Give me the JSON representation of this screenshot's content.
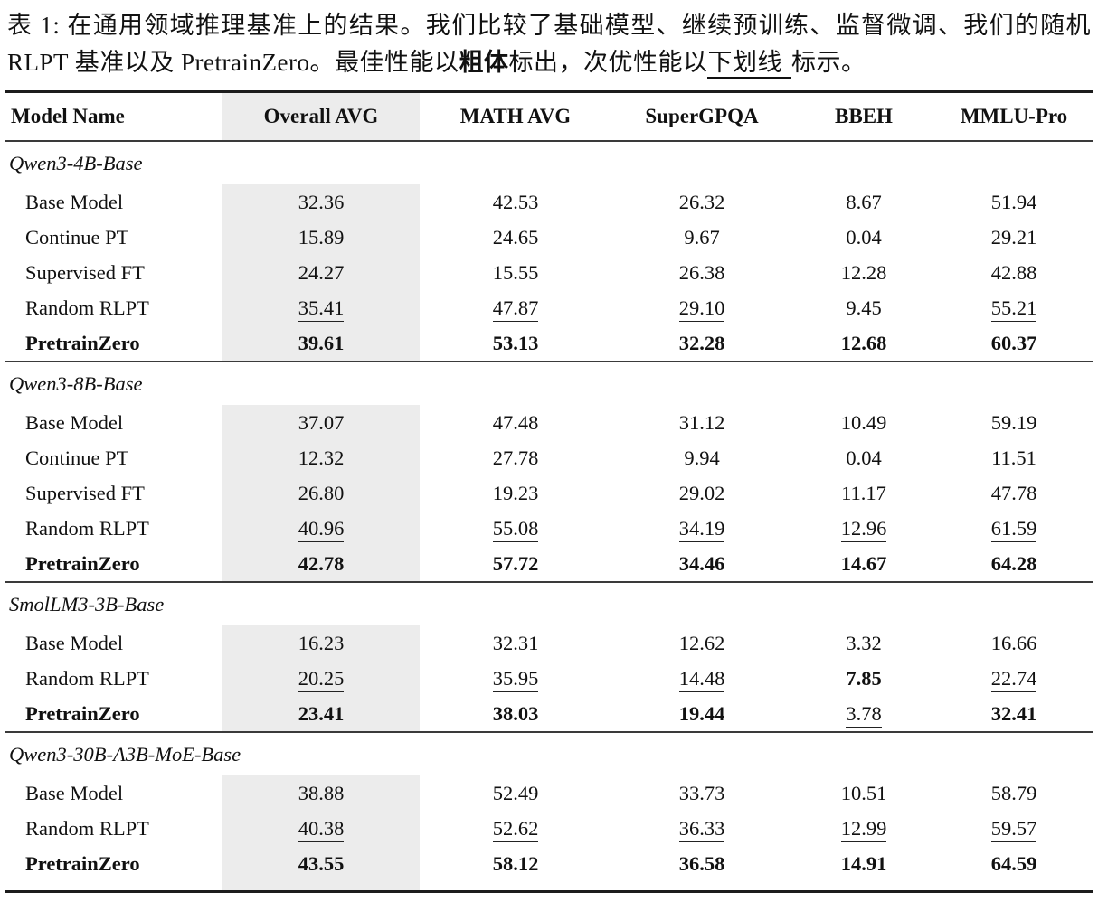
{
  "caption": {
    "label": "表 1: ",
    "text_before_bold": "在通用领域推理基准上的结果。我们比较了基础模型、继续预训练、监督微调、我们的随机 RLPT 基准以及 PretrainZero。最佳性能以",
    "bold_word": "粗体",
    "text_mid": "标出，次优性能以",
    "underline_word": "下划线",
    "text_after": "标示。"
  },
  "table": {
    "columns": [
      "Model Name",
      "Overall AVG",
      "MATH AVG",
      "SuperGPQA",
      "BBEH",
      "MMLU-Pro"
    ],
    "highlight_color": "#ececec",
    "sections": [
      {
        "name": "Qwen3-4B-Base",
        "rows": [
          {
            "label": "Base Model",
            "label_style": "p",
            "cells": [
              {
                "v": "32.36",
                "s": "p"
              },
              {
                "v": "42.53",
                "s": "p"
              },
              {
                "v": "26.32",
                "s": "p"
              },
              {
                "v": "8.67",
                "s": "p"
              },
              {
                "v": "51.94",
                "s": "p"
              }
            ]
          },
          {
            "label": "Continue PT",
            "label_style": "p",
            "cells": [
              {
                "v": "15.89",
                "s": "p"
              },
              {
                "v": "24.65",
                "s": "p"
              },
              {
                "v": "9.67",
                "s": "p"
              },
              {
                "v": "0.04",
                "s": "p"
              },
              {
                "v": "29.21",
                "s": "p"
              }
            ]
          },
          {
            "label": "Supervised FT",
            "label_style": "p",
            "cells": [
              {
                "v": "24.27",
                "s": "p"
              },
              {
                "v": "15.55",
                "s": "p"
              },
              {
                "v": "26.38",
                "s": "p"
              },
              {
                "v": "12.28",
                "s": "u"
              },
              {
                "v": "42.88",
                "s": "p"
              }
            ]
          },
          {
            "label": "Random RLPT",
            "label_style": "p",
            "cells": [
              {
                "v": "35.41",
                "s": "u"
              },
              {
                "v": "47.87",
                "s": "u"
              },
              {
                "v": "29.10",
                "s": "u"
              },
              {
                "v": "9.45",
                "s": "p"
              },
              {
                "v": "55.21",
                "s": "u"
              }
            ]
          },
          {
            "label": "PretrainZero",
            "label_style": "b",
            "cells": [
              {
                "v": "39.61",
                "s": "b"
              },
              {
                "v": "53.13",
                "s": "b"
              },
              {
                "v": "32.28",
                "s": "b"
              },
              {
                "v": "12.68",
                "s": "b"
              },
              {
                "v": "60.37",
                "s": "b"
              }
            ]
          }
        ]
      },
      {
        "name": "Qwen3-8B-Base",
        "rows": [
          {
            "label": "Base Model",
            "label_style": "p",
            "cells": [
              {
                "v": "37.07",
                "s": "p"
              },
              {
                "v": "47.48",
                "s": "p"
              },
              {
                "v": "31.12",
                "s": "p"
              },
              {
                "v": "10.49",
                "s": "p"
              },
              {
                "v": "59.19",
                "s": "p"
              }
            ]
          },
          {
            "label": "Continue PT",
            "label_style": "p",
            "cells": [
              {
                "v": "12.32",
                "s": "p"
              },
              {
                "v": "27.78",
                "s": "p"
              },
              {
                "v": "9.94",
                "s": "p"
              },
              {
                "v": "0.04",
                "s": "p"
              },
              {
                "v": "11.51",
                "s": "p"
              }
            ]
          },
          {
            "label": "Supervised FT",
            "label_style": "p",
            "cells": [
              {
                "v": "26.80",
                "s": "p"
              },
              {
                "v": "19.23",
                "s": "p"
              },
              {
                "v": "29.02",
                "s": "p"
              },
              {
                "v": "11.17",
                "s": "p"
              },
              {
                "v": "47.78",
                "s": "p"
              }
            ]
          },
          {
            "label": "Random RLPT",
            "label_style": "p",
            "cells": [
              {
                "v": "40.96",
                "s": "u"
              },
              {
                "v": "55.08",
                "s": "u"
              },
              {
                "v": "34.19",
                "s": "u"
              },
              {
                "v": "12.96",
                "s": "u"
              },
              {
                "v": "61.59",
                "s": "u"
              }
            ]
          },
          {
            "label": "PretrainZero",
            "label_style": "b",
            "cells": [
              {
                "v": "42.78",
                "s": "b"
              },
              {
                "v": "57.72",
                "s": "b"
              },
              {
                "v": "34.46",
                "s": "b"
              },
              {
                "v": "14.67",
                "s": "b"
              },
              {
                "v": "64.28",
                "s": "b"
              }
            ]
          }
        ]
      },
      {
        "name": "SmolLM3-3B-Base",
        "rows": [
          {
            "label": "Base Model",
            "label_style": "p",
            "cells": [
              {
                "v": "16.23",
                "s": "p"
              },
              {
                "v": "32.31",
                "s": "p"
              },
              {
                "v": "12.62",
                "s": "p"
              },
              {
                "v": "3.32",
                "s": "p"
              },
              {
                "v": "16.66",
                "s": "p"
              }
            ]
          },
          {
            "label": "Random RLPT",
            "label_style": "p",
            "cells": [
              {
                "v": "20.25",
                "s": "u"
              },
              {
                "v": "35.95",
                "s": "u"
              },
              {
                "v": "14.48",
                "s": "u"
              },
              {
                "v": "7.85",
                "s": "b"
              },
              {
                "v": "22.74",
                "s": "u"
              }
            ]
          },
          {
            "label": "PretrainZero",
            "label_style": "b",
            "cells": [
              {
                "v": "23.41",
                "s": "b"
              },
              {
                "v": "38.03",
                "s": "b"
              },
              {
                "v": "19.44",
                "s": "b"
              },
              {
                "v": "3.78",
                "s": "u"
              },
              {
                "v": "32.41",
                "s": "b"
              }
            ]
          }
        ]
      },
      {
        "name": "Qwen3-30B-A3B-MoE-Base",
        "rows": [
          {
            "label": "Base Model",
            "label_style": "p",
            "cells": [
              {
                "v": "38.88",
                "s": "p"
              },
              {
                "v": "52.49",
                "s": "p"
              },
              {
                "v": "33.73",
                "s": "p"
              },
              {
                "v": "10.51",
                "s": "p"
              },
              {
                "v": "58.79",
                "s": "p"
              }
            ]
          },
          {
            "label": "Random RLPT",
            "label_style": "p",
            "cells": [
              {
                "v": "40.38",
                "s": "u"
              },
              {
                "v": "52.62",
                "s": "u"
              },
              {
                "v": "36.33",
                "s": "u"
              },
              {
                "v": "12.99",
                "s": "u"
              },
              {
                "v": "59.57",
                "s": "u"
              }
            ]
          },
          {
            "label": "PretrainZero",
            "label_style": "b",
            "cells": [
              {
                "v": "43.55",
                "s": "b"
              },
              {
                "v": "58.12",
                "s": "b"
              },
              {
                "v": "36.58",
                "s": "b"
              },
              {
                "v": "14.91",
                "s": "b"
              },
              {
                "v": "64.59",
                "s": "b"
              }
            ]
          }
        ]
      }
    ]
  }
}
